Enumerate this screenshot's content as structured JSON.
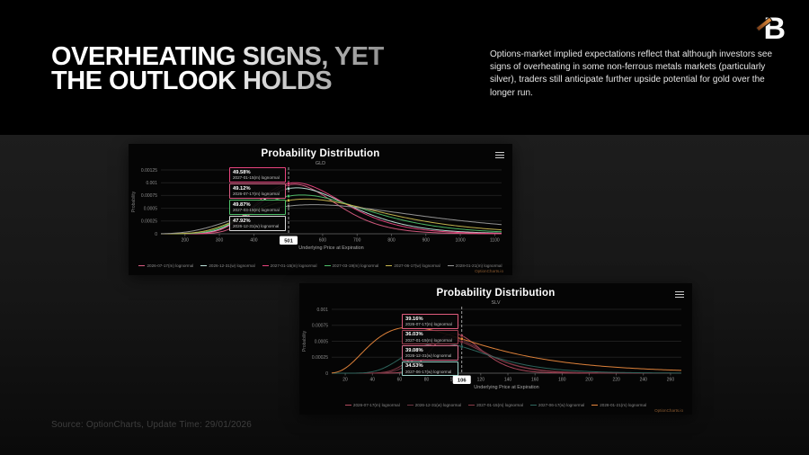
{
  "header": {
    "title_line1": "OVERHEATING SIGNS, YET",
    "title_line2": "THE OUTLOOK HOLDS",
    "description": "Options-market implied expectations reflect that although investors see signs of overheating in some non-ferrous metals markets (particularly silver), traders still anticipate further upside potential for gold over the longer run.",
    "logo_letter": "B",
    "logo_accent_color": "#e8913c"
  },
  "footer": {
    "source": "Source: OptionCharts, Update Time: 29/01/2026"
  },
  "chart_data": [
    {
      "type": "line",
      "title": "Probability Distribution",
      "subtitle": "GLD",
      "xlabel": "Underlying Price at Expiration",
      "ylabel": "Probability",
      "watermark": "OptionCharts.io",
      "legend_position": "bottom",
      "grid": "horizontal",
      "xlim": [
        130,
        1120
      ],
      "ylim": [
        0,
        0.00125
      ],
      "xticks": [
        200,
        300,
        400,
        600,
        700,
        800,
        900,
        1000,
        1100
      ],
      "yticks": [
        {
          "v": 0,
          "label": "0"
        },
        {
          "v": 0.00025,
          "label": "0.00025"
        },
        {
          "v": 0.0005,
          "label": "0.0005"
        },
        {
          "v": 0.00075,
          "label": "0.00075"
        },
        {
          "v": 0.001,
          "label": "0.001"
        },
        {
          "v": 0.00125,
          "label": "0.00125"
        }
      ],
      "current_price": 501,
      "series": [
        {
          "name": "2026-07-17(m) lognormal",
          "color": "#d85c82",
          "mode": 518,
          "peak": 0.00097,
          "sigma": 0.21
        },
        {
          "name": "2026-12-31(w) lognormal",
          "color": "#bfe3da",
          "mode": 525,
          "peak": 0.0009,
          "sigma": 0.26
        },
        {
          "name": "2027-01-15(m) lognormal",
          "color": "#e8447e",
          "mode": 520,
          "peak": 0.001,
          "sigma": 0.24
        },
        {
          "name": "2027-03-19(m) lognormal",
          "color": "#4fc06a",
          "mode": 540,
          "peak": 0.00076,
          "sigma": 0.3
        },
        {
          "name": "2027-06-17(w) lognormal",
          "color": "#c9b84f",
          "mode": 552,
          "peak": 0.00068,
          "sigma": 0.34
        },
        {
          "name": "2028-01-21(m) lognormal",
          "color": "#9a9a9a",
          "mode": 575,
          "peak": 0.00057,
          "sigma": 0.44
        }
      ],
      "callouts": [
        {
          "pct": "49.58%",
          "name": "2027-01-15(m) lognormal",
          "color": "#e8447e"
        },
        {
          "pct": "49.12%",
          "name": "2026-07-17(m) lognormal",
          "color": "#d85c82"
        },
        {
          "pct": "49.87%",
          "name": "2027-03-19(m) lognormal",
          "color": "#4fc06a"
        },
        {
          "pct": "47.92%",
          "name": "2026-12-31(w) lognormal",
          "color": "#d8d8d8"
        }
      ]
    },
    {
      "type": "line",
      "title": "Probability Distribution",
      "subtitle": "SLV",
      "xlabel": "Underlying Price at Expiration",
      "ylabel": "Probability",
      "watermark": "OptionCharts.io",
      "legend_position": "bottom",
      "grid": "horizontal",
      "xlim": [
        10,
        268
      ],
      "ylim": [
        0,
        0.001
      ],
      "xticks": [
        20,
        40,
        60,
        80,
        100,
        120,
        140,
        160,
        180,
        200,
        220,
        240,
        260
      ],
      "yticks": [
        {
          "v": 0,
          "label": "0"
        },
        {
          "v": 0.00025,
          "label": "0.00025"
        },
        {
          "v": 0.0005,
          "label": "0.0005"
        },
        {
          "v": 0.00075,
          "label": "0.00075"
        },
        {
          "v": 0.001,
          "label": "0.001"
        }
      ],
      "current_price": 106,
      "series": [
        {
          "name": "2026-07-17(m) lognormal",
          "color": "#b04a5e",
          "mode": 100,
          "peak": 0.00062,
          "sigma": 0.18
        },
        {
          "name": "2026-12-31(w) lognormal",
          "color": "#6e3642",
          "mode": 97,
          "peak": 0.00056,
          "sigma": 0.23
        },
        {
          "name": "2027-01-15(m) lognormal",
          "color": "#8a3a48",
          "mode": 95,
          "peak": 0.00054,
          "sigma": 0.25
        },
        {
          "name": "2027-06-17(w) lognormal",
          "color": "#2f6860",
          "mode": 90,
          "peak": 0.00047,
          "sigma": 0.33
        },
        {
          "name": "2028-01-21(m) lognormal",
          "color": "#e8873c",
          "mode": 68,
          "peak": 0.00072,
          "sigma": 0.58
        }
      ],
      "callouts": [
        {
          "pct": "39.16%",
          "name": "2026-07-17(m) lognormal",
          "color": "#e05c7e"
        },
        {
          "pct": "36.03%",
          "name": "2027-01-15(m) lognormal",
          "color": "#9c4050"
        },
        {
          "pct": "39.08%",
          "name": "2026-12-31(w) lognormal",
          "color": "#d96a8a"
        },
        {
          "pct": "34.53%",
          "name": "2027-06-17(w) lognormal",
          "color": "#9fd4cb"
        }
      ]
    }
  ]
}
